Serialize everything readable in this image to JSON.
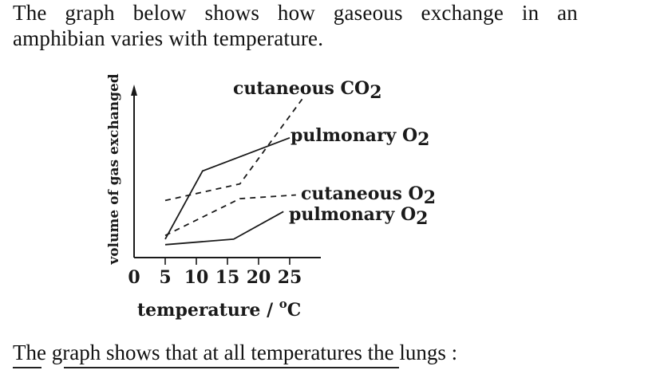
{
  "intro": {
    "line1": "The graph below shows how gaseous exchange in an",
    "line2": "amphibian varies with temperature."
  },
  "question": {
    "text": "The graph shows that at all temperatures the lungs :"
  },
  "chart_data": {
    "type": "line",
    "xlabel": "temperature / °C",
    "ylabel": "volume of gas exchanged",
    "x_ticks": [
      0,
      5,
      10,
      15,
      20,
      25
    ],
    "xlim": [
      0,
      28
    ],
    "ylim": [
      0,
      10
    ],
    "y_tick_labels": false,
    "grid": false,
    "series": [
      {
        "name": "cutaneous CO2",
        "style": "dashed",
        "x": [
          5,
          17,
          27
        ],
        "y": [
          3.1,
          4.0,
          8.6
        ]
      },
      {
        "name": "pulmonary O2",
        "style": "solid",
        "x": [
          5,
          11,
          25
        ],
        "y": [
          1.0,
          4.7,
          6.5
        ]
      },
      {
        "name": "cutaneous O2",
        "style": "dashed",
        "x": [
          5,
          17,
          26
        ],
        "y": [
          1.2,
          3.2,
          3.4
        ]
      },
      {
        "name": "pulmonary O2",
        "style": "solid",
        "x": [
          5,
          16,
          24
        ],
        "y": [
          0.7,
          1.0,
          2.5
        ]
      }
    ],
    "label_texts": [
      {
        "main": "cutaneous CO",
        "sub": "2"
      },
      {
        "main": "pulmonary O",
        "sub": "2"
      },
      {
        "main": "cutaneous O",
        "sub": "2"
      },
      {
        "main": "pulmonary O",
        "sub": "2"
      }
    ],
    "tick_label_texts": [
      "0",
      "5",
      "10",
      "15",
      "20",
      "25"
    ],
    "xlabel_main": "temperature / ",
    "xlabel_degree": "o",
    "xlabel_unit": "C"
  }
}
